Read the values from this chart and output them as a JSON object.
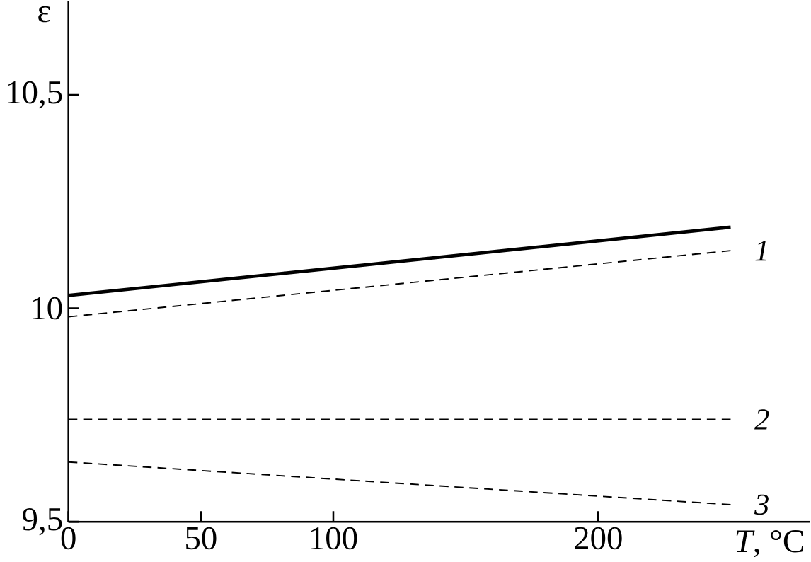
{
  "chart_data": {
    "type": "line",
    "xlabel": "*T*, °C",
    "ylabel": "ε",
    "xlim": [
      0,
      280
    ],
    "ylim": [
      9.5,
      10.72
    ],
    "xticks": [
      0,
      50,
      100,
      200
    ],
    "yticks": [
      {
        "value": 9.5,
        "label": "9,5"
      },
      {
        "value": 10,
        "label": "10"
      },
      {
        "value": 10.5,
        "label": "10,5"
      }
    ],
    "x": [
      0,
      250
    ],
    "grid": false,
    "series": [
      {
        "color": "#000000",
        "line_style": "solid",
        "values": [
          10.03,
          10.19
        ]
      },
      {
        "name": "1",
        "color": "#000000",
        "line_style": "dashed",
        "values": [
          9.98,
          10.135
        ]
      },
      {
        "name": "2",
        "color": "#000000",
        "line_style": "dashed",
        "values": [
          9.74,
          9.74
        ]
      },
      {
        "name": "3",
        "color": "#000000",
        "line_style": "dashed",
        "values": [
          9.64,
          9.54
        ]
      }
    ]
  }
}
